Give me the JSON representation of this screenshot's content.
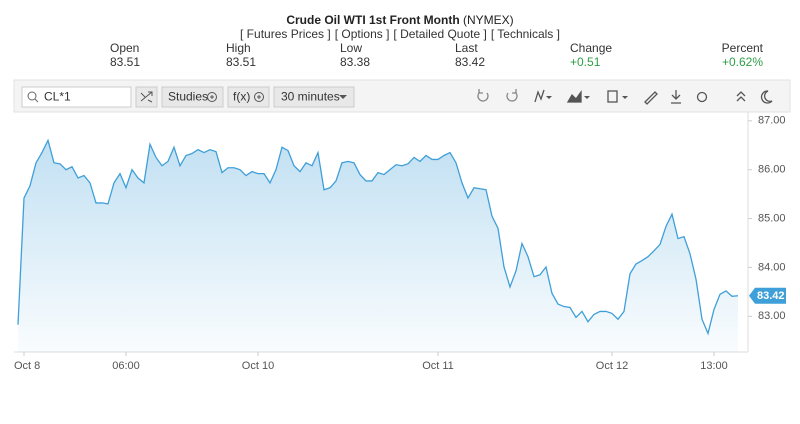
{
  "header": {
    "title": "Crude Oil WTI 1st Front Month",
    "exchange": "(NYMEX)",
    "links": [
      "[ Futures Prices ]",
      "[ Options ]",
      "[ Detailed Quote ]",
      "[ Technicals ]"
    ],
    "quotes": [
      {
        "label": "Open",
        "value": "83.51"
      },
      {
        "label": "High",
        "value": "83.51"
      },
      {
        "label": "Low",
        "value": "83.38"
      },
      {
        "label": "Last",
        "value": "83.42"
      },
      {
        "label": "Change",
        "value": "+0.51"
      },
      {
        "label": "Percent",
        "value": "+0.62%"
      }
    ]
  },
  "toolbar": {
    "symbol": "CL*1",
    "studies": "Studies",
    "fx": "f(x)",
    "interval": "30 minutes"
  },
  "chart_data": {
    "type": "area",
    "color": "#3f9fd8",
    "grid": false,
    "categories": [
      null,
      "Oct 8",
      null,
      null,
      null,
      null,
      null,
      null,
      null,
      null,
      null,
      null,
      null,
      null,
      null,
      null,
      null,
      null,
      "06:00",
      null,
      null,
      null,
      null,
      null,
      null,
      null,
      null,
      null,
      null,
      null,
      null,
      null,
      null,
      null,
      null,
      null,
      null,
      null,
      null,
      null,
      "Oct 10",
      null,
      null,
      null,
      null,
      null,
      null,
      null,
      null,
      null,
      null,
      null,
      null,
      null,
      null,
      null,
      null,
      null,
      null,
      null,
      null,
      null,
      null,
      null,
      null,
      null,
      null,
      null,
      null,
      null,
      "Oct 11",
      null,
      null,
      null,
      null,
      null,
      null,
      null,
      null,
      null,
      null,
      null,
      null,
      null,
      null,
      null,
      null,
      null,
      null,
      null,
      null,
      null,
      null,
      null,
      null,
      null,
      null,
      null,
      null,
      "Oct 12",
      null,
      null,
      null,
      null,
      null,
      null,
      null,
      null,
      null,
      null,
      null,
      null,
      null,
      null,
      null,
      null,
      "13:00",
      null,
      null,
      null,
      null
    ],
    "values": [
      82.83,
      85.42,
      85.67,
      86.14,
      86.35,
      86.6,
      86.14,
      86.12,
      86.0,
      86.06,
      85.83,
      85.88,
      85.73,
      85.32,
      85.32,
      85.3,
      85.73,
      85.92,
      85.63,
      86.0,
      85.83,
      85.73,
      86.52,
      86.25,
      86.08,
      86.17,
      86.46,
      86.08,
      86.29,
      86.33,
      86.41,
      86.35,
      86.41,
      86.37,
      85.94,
      86.04,
      86.04,
      86.0,
      85.88,
      85.96,
      85.92,
      85.92,
      85.73,
      86.0,
      86.46,
      86.39,
      86.08,
      85.96,
      86.14,
      86.08,
      86.35,
      85.59,
      85.63,
      85.77,
      86.14,
      86.17,
      86.14,
      85.9,
      85.77,
      85.77,
      85.94,
      85.9,
      86.0,
      86.1,
      86.08,
      86.12,
      86.25,
      86.17,
      86.29,
      86.21,
      86.21,
      86.29,
      86.35,
      86.14,
      85.73,
      85.42,
      85.63,
      85.61,
      85.59,
      85.05,
      84.8,
      84.01,
      83.6,
      83.93,
      84.49,
      84.22,
      83.81,
      83.85,
      84.01,
      83.47,
      83.25,
      83.2,
      83.18,
      82.98,
      83.1,
      82.89,
      83.04,
      83.1,
      83.1,
      83.06,
      82.94,
      83.1,
      83.87,
      84.07,
      84.14,
      84.22,
      84.34,
      84.47,
      84.84,
      85.09,
      84.59,
      84.63,
      84.28,
      83.76,
      82.94,
      82.65,
      83.14,
      83.45,
      83.52,
      83.41,
      83.42
    ],
    "ylim": [
      82.27,
      87.18
    ],
    "yticks": [
      {
        "value": 83,
        "label": "83.00"
      },
      {
        "value": 84,
        "label": "84.00"
      },
      {
        "value": 85,
        "label": "85.00"
      },
      {
        "value": 86,
        "label": "86.00"
      },
      {
        "value": 87,
        "label": "87.00"
      }
    ]
  }
}
